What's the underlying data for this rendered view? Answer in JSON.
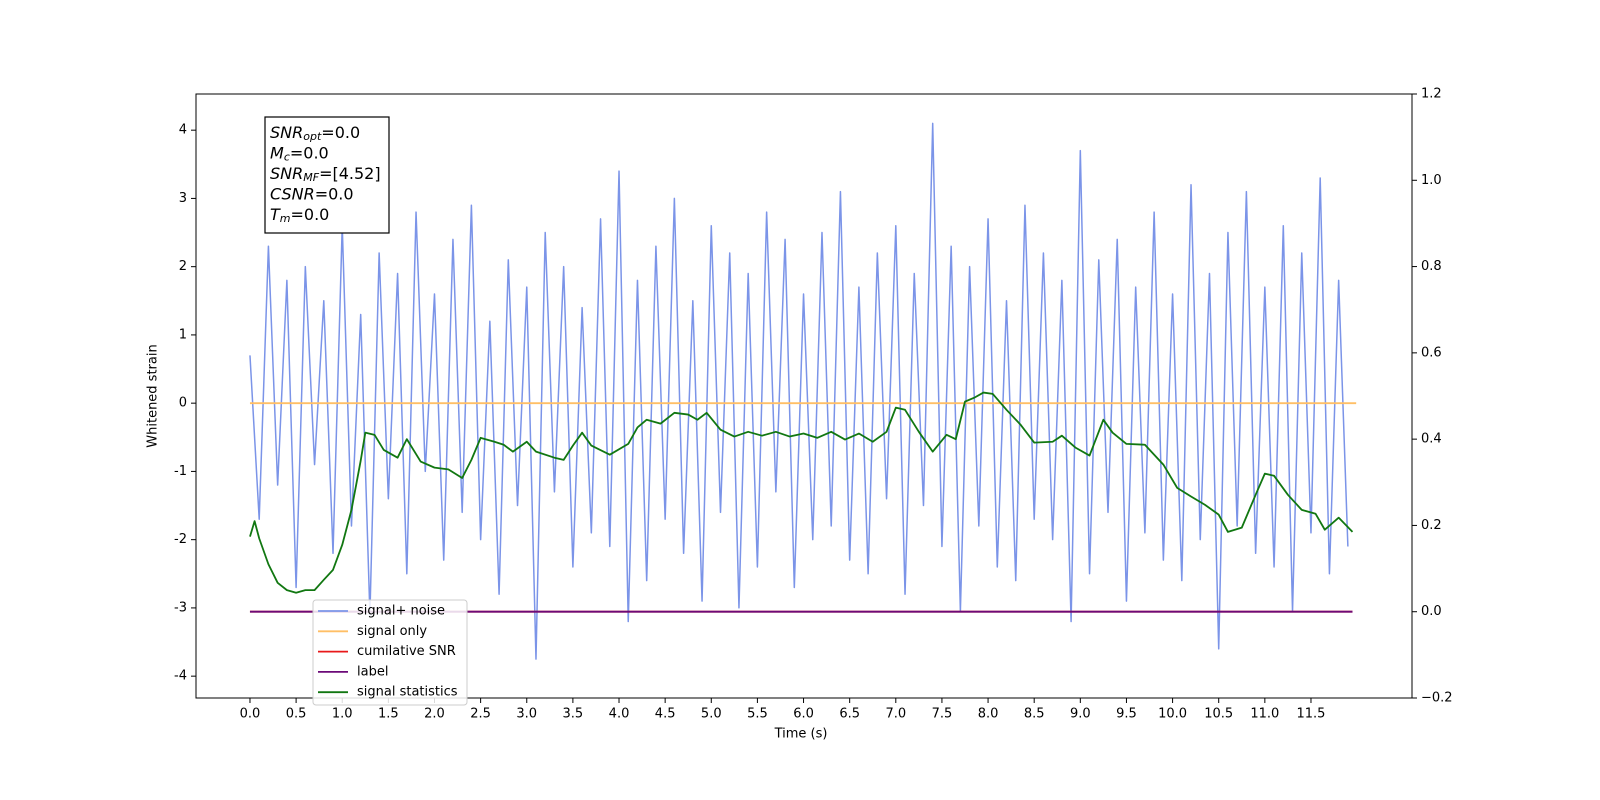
{
  "chart_data": {
    "type": "line",
    "xlabel": "Time (s)",
    "ylabel": "Whitened strain",
    "xlim": [
      -0.585,
      12.595
    ],
    "ylim": [
      -4.32,
      4.53
    ],
    "y2lim": [
      -0.2,
      1.2
    ],
    "xticks": [
      {
        "value": 0,
        "label": "0.0"
      },
      {
        "value": 0.5,
        "label": "0.5"
      },
      {
        "value": 1,
        "label": "1.0"
      },
      {
        "value": 1.5,
        "label": "1.5"
      },
      {
        "value": 2,
        "label": "2.0"
      },
      {
        "value": 2.5,
        "label": "2.5"
      },
      {
        "value": 3,
        "label": "3.0"
      },
      {
        "value": 3.5,
        "label": "3.5"
      },
      {
        "value": 4,
        "label": "4.0"
      },
      {
        "value": 4.5,
        "label": "4.5"
      },
      {
        "value": 5,
        "label": "5.0"
      },
      {
        "value": 5.5,
        "label": "5.5"
      },
      {
        "value": 6,
        "label": "6.0"
      },
      {
        "value": 6.5,
        "label": "6.5"
      },
      {
        "value": 7,
        "label": "7.0"
      },
      {
        "value": 7.5,
        "label": "7.5"
      },
      {
        "value": 8,
        "label": "8.0"
      },
      {
        "value": 8.5,
        "label": "8.5"
      },
      {
        "value": 9,
        "label": "9.0"
      },
      {
        "value": 9.5,
        "label": "9.5"
      },
      {
        "value": 10,
        "label": "10.0"
      },
      {
        "value": 10.5,
        "label": "10.5"
      },
      {
        "value": 11,
        "label": "11.0"
      },
      {
        "value": 11.5,
        "label": "11.5"
      }
    ],
    "yticks": [
      -4,
      -3,
      -2,
      -1,
      0,
      1,
      2,
      3,
      4
    ],
    "y2ticks": [
      {
        "value": -0.2,
        "label": "−0.2"
      },
      {
        "value": 0,
        "label": "0.0"
      },
      {
        "value": 0.2,
        "label": "0.2"
      },
      {
        "value": 0.4,
        "label": "0.4"
      },
      {
        "value": 0.6,
        "label": "0.6"
      },
      {
        "value": 0.8,
        "label": "0.8"
      },
      {
        "value": 1,
        "label": "1.0"
      },
      {
        "value": 1.2,
        "label": "1.2"
      }
    ],
    "annotations": [
      {
        "base": "SNR",
        "sub": "opt",
        "rest": "=0.0"
      },
      {
        "base": "M",
        "sub": "c",
        "rest": "=0.0"
      },
      {
        "base": "SNR",
        "sub": "MF",
        "rest": "=[4.52]"
      },
      {
        "base": "CSNR",
        "rest": "=0.0"
      },
      {
        "base": "T",
        "sub": "m",
        "rest": "=0.0"
      }
    ],
    "series": [
      {
        "name": "signal+ noise",
        "color": "#7b94e8",
        "x": [
          0,
          0.1,
          0.2,
          0.3,
          0.4,
          0.5,
          0.6,
          0.7,
          0.8,
          0.9,
          1,
          1.1,
          1.2,
          1.3,
          1.4,
          1.5,
          1.6,
          1.7,
          1.8,
          1.9,
          2,
          2.1,
          2.2,
          2.3,
          2.4,
          2.5,
          2.6,
          2.7,
          2.8,
          2.9,
          3,
          3.1,
          3.2,
          3.3,
          3.4,
          3.5,
          3.6,
          3.7,
          3.8,
          3.9,
          4,
          4.1,
          4.2,
          4.3,
          4.4,
          4.5,
          4.6,
          4.7,
          4.8,
          4.9,
          5,
          5.1,
          5.2,
          5.3,
          5.4,
          5.5,
          5.6,
          5.7,
          5.8,
          5.9,
          6,
          6.1,
          6.2,
          6.3,
          6.4,
          6.5,
          6.6,
          6.7,
          6.8,
          6.9,
          7,
          7.1,
          7.2,
          7.3,
          7.4,
          7.5,
          7.6,
          7.7,
          7.8,
          7.9,
          8,
          8.1,
          8.2,
          8.3,
          8.4,
          8.5,
          8.6,
          8.7,
          8.8,
          8.9,
          9,
          9.1,
          9.2,
          9.3,
          9.4,
          9.5,
          9.6,
          9.7,
          9.8,
          9.9,
          10,
          10.1,
          10.2,
          10.3,
          10.4,
          10.5,
          10.6,
          10.7,
          10.8,
          10.9,
          11,
          11.1,
          11.2,
          11.3,
          11.4,
          11.5,
          11.6,
          11.7,
          11.8,
          11.9
        ],
        "values": [
          0.7,
          -1.7,
          2.3,
          -1.2,
          1.8,
          -2.7,
          2.0,
          -0.9,
          1.5,
          -2.2,
          2.6,
          -1.8,
          1.3,
          -3.1,
          2.2,
          -1.4,
          1.9,
          -2.5,
          2.8,
          -1.0,
          1.6,
          -2.3,
          2.4,
          -1.6,
          2.9,
          -2.0,
          1.2,
          -2.8,
          2.1,
          -1.5,
          1.7,
          -3.75,
          2.5,
          -1.3,
          2.0,
          -2.4,
          1.4,
          -1.9,
          2.7,
          -2.1,
          3.4,
          -3.2,
          1.8,
          -2.6,
          2.3,
          -1.7,
          3.0,
          -2.2,
          1.5,
          -2.9,
          2.6,
          -1.6,
          2.2,
          -3.0,
          1.9,
          -2.4,
          2.8,
          -1.3,
          2.4,
          -2.7,
          1.6,
          -2.0,
          2.5,
          -1.8,
          3.1,
          -2.3,
          1.7,
          -2.5,
          2.2,
          -1.4,
          2.6,
          -2.8,
          1.9,
          -1.5,
          4.1,
          -2.1,
          2.3,
          -3.05,
          2.0,
          -1.8,
          2.7,
          -2.4,
          1.5,
          -2.6,
          2.9,
          -1.7,
          2.2,
          -2.0,
          1.8,
          -3.2,
          3.7,
          -2.5,
          2.1,
          -1.6,
          2.4,
          -2.9,
          1.7,
          -1.9,
          2.8,
          -2.3,
          1.6,
          -2.6,
          3.2,
          -2.0,
          1.9,
          -3.6,
          2.5,
          -1.8,
          3.1,
          -2.2,
          1.7,
          -2.4,
          2.6,
          -3.05,
          2.2,
          -1.9,
          3.3,
          -2.5,
          1.8,
          -2.1
        ]
      },
      {
        "name": "signal only",
        "color": "#ffbf66",
        "x": [
          0,
          11.99
        ],
        "values": [
          0,
          0
        ]
      },
      {
        "name": "cumilative SNR",
        "color": "#e8191a",
        "axis": "y2",
        "x": [
          0,
          11.95
        ],
        "values": [
          0,
          0
        ]
      },
      {
        "name": "label",
        "color": "#6c0a78",
        "axis": "y2",
        "x": [
          0,
          11.95
        ],
        "values": [
          0,
          0
        ]
      },
      {
        "name": "signal statistics",
        "color": "#117711",
        "axis": "y2",
        "x": [
          0,
          0.05,
          0.1,
          0.2,
          0.3,
          0.4,
          0.5,
          0.6,
          0.7,
          0.8,
          0.9,
          1,
          1.1,
          1.2,
          1.25,
          1.35,
          1.45,
          1.6,
          1.7,
          1.85,
          2,
          2.15,
          2.3,
          2.4,
          2.5,
          2.65,
          2.75,
          2.85,
          3,
          3.1,
          3.3,
          3.4,
          3.5,
          3.6,
          3.7,
          3.9,
          4.1,
          4.2,
          4.3,
          4.45,
          4.6,
          4.75,
          4.85,
          4.95,
          5.1,
          5.25,
          5.4,
          5.55,
          5.7,
          5.85,
          6,
          6.15,
          6.3,
          6.45,
          6.6,
          6.75,
          6.9,
          7,
          7.1,
          7.25,
          7.4,
          7.55,
          7.65,
          7.75,
          7.85,
          7.95,
          8.05,
          8.2,
          8.35,
          8.5,
          8.7,
          8.8,
          8.95,
          9.1,
          9.25,
          9.35,
          9.5,
          9.7,
          9.9,
          10.05,
          10.2,
          10.35,
          10.5,
          10.6,
          10.75,
          10.9,
          11,
          11.1,
          11.25,
          11.4,
          11.55,
          11.65,
          11.8,
          11.95
        ],
        "values": [
          0.174,
          0.21,
          0.17,
          0.11,
          0.067,
          0.05,
          0.044,
          0.05,
          0.05,
          0.074,
          0.097,
          0.155,
          0.236,
          0.35,
          0.415,
          0.41,
          0.375,
          0.357,
          0.4,
          0.348,
          0.334,
          0.33,
          0.31,
          0.352,
          0.403,
          0.394,
          0.387,
          0.371,
          0.394,
          0.371,
          0.357,
          0.352,
          0.385,
          0.415,
          0.385,
          0.364,
          0.389,
          0.427,
          0.445,
          0.436,
          0.461,
          0.457,
          0.445,
          0.461,
          0.422,
          0.406,
          0.417,
          0.408,
          0.417,
          0.406,
          0.413,
          0.403,
          0.417,
          0.399,
          0.413,
          0.394,
          0.417,
          0.473,
          0.468,
          0.417,
          0.371,
          0.41,
          0.4,
          0.487,
          0.496,
          0.508,
          0.505,
          0.468,
          0.434,
          0.392,
          0.394,
          0.408,
          0.38,
          0.362,
          0.445,
          0.415,
          0.389,
          0.387,
          0.341,
          0.287,
          0.267,
          0.248,
          0.225,
          0.185,
          0.195,
          0.271,
          0.32,
          0.315,
          0.271,
          0.236,
          0.227,
          0.19,
          0.218,
          0.185
        ]
      }
    ]
  }
}
